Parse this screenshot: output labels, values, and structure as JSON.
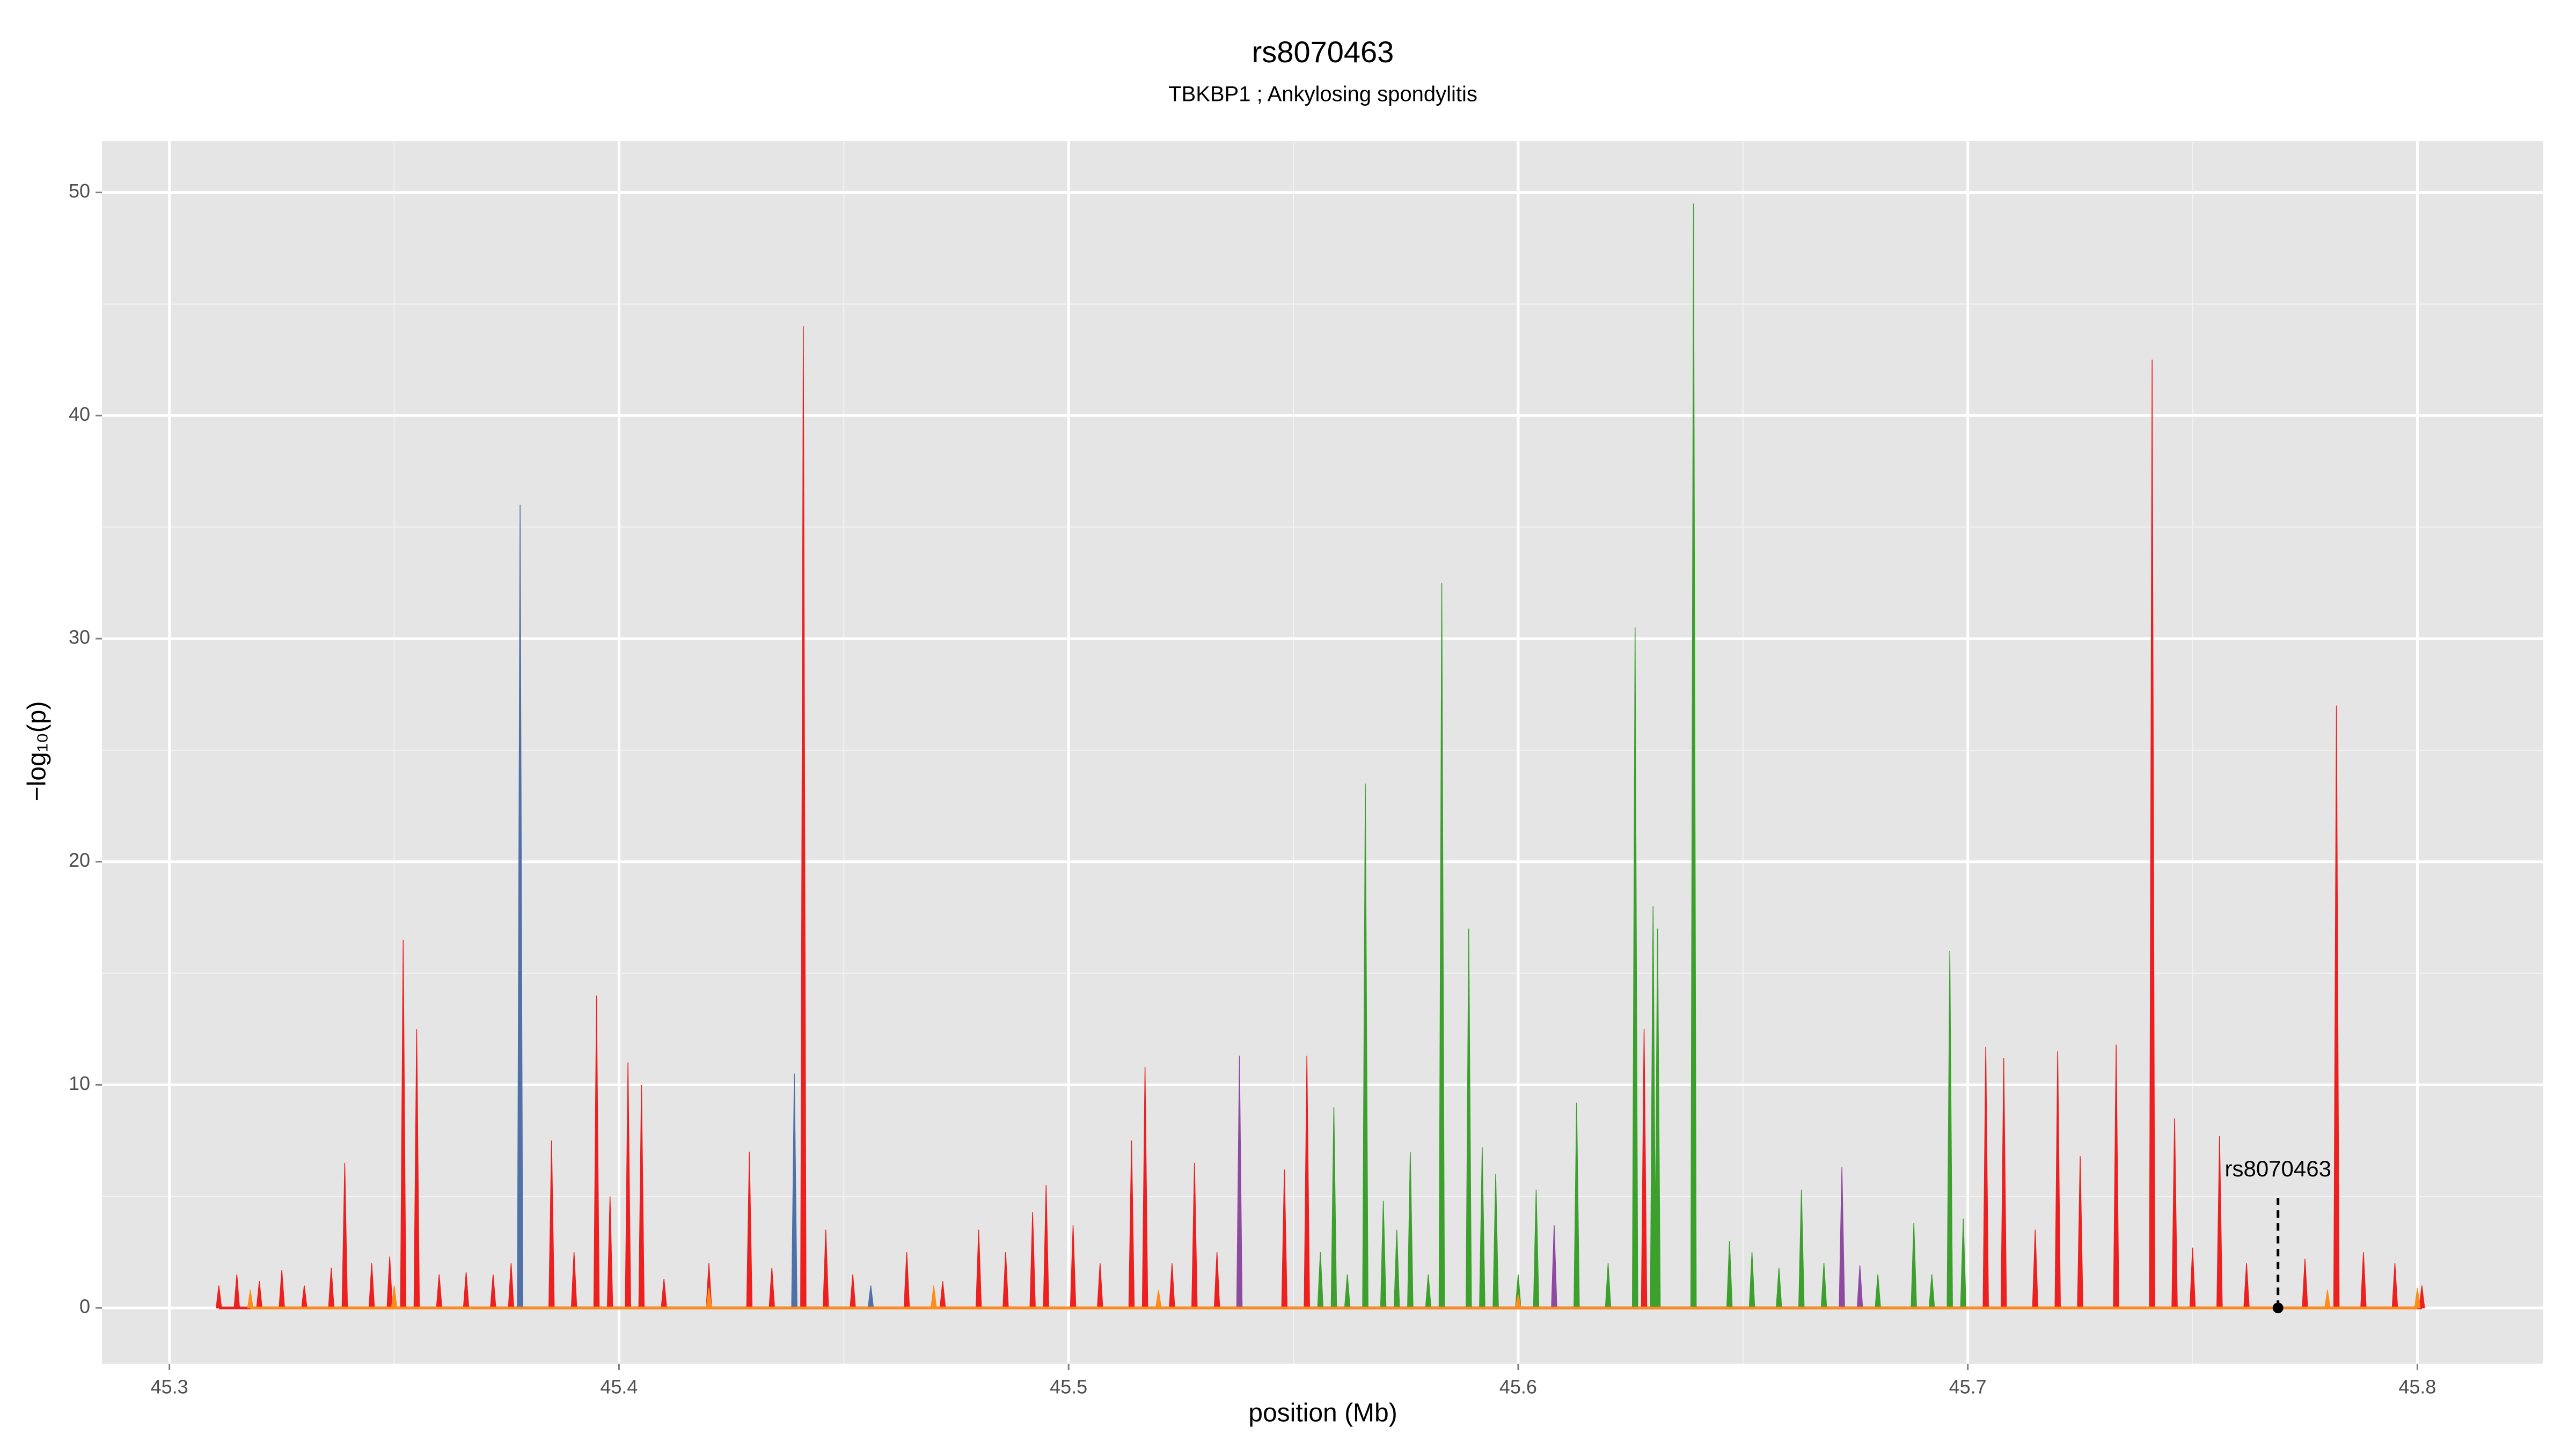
{
  "chart_data": {
    "type": "area",
    "title": "rs8070463",
    "subtitle": "TBKBP1 ; Ankylosing spondylitis",
    "x_label": "position (Mb)",
    "y_label": "−log₁₀(p)",
    "xlim": [
      45.285,
      45.828
    ],
    "ylim": [
      -2.5,
      52.3
    ],
    "xticks": [
      45.3,
      45.4,
      45.5,
      45.6,
      45.7,
      45.8
    ],
    "yticks": [
      0,
      10,
      20,
      30,
      40,
      50
    ],
    "grid": true,
    "series": [
      {
        "name": "red",
        "color": "#ee1f1f",
        "x": [
          45.311,
          45.315,
          45.32,
          45.325,
          45.33,
          45.336,
          45.339,
          45.345,
          45.349,
          45.352,
          45.355,
          45.36,
          45.366,
          45.372,
          45.376,
          45.385,
          45.39,
          45.395,
          45.398,
          45.402,
          45.405,
          45.41,
          45.42,
          45.429,
          45.434,
          45.441,
          45.446,
          45.452,
          45.464,
          45.472,
          45.48,
          45.486,
          45.492,
          45.495,
          45.501,
          45.507,
          45.514,
          45.517,
          45.523,
          45.528,
          45.533,
          45.548,
          45.553,
          45.628,
          45.704,
          45.708,
          45.715,
          45.72,
          45.725,
          45.733,
          45.741,
          45.746,
          45.75,
          45.756,
          45.762,
          45.775,
          45.782,
          45.788,
          45.795,
          45.801
        ],
        "values": [
          1,
          1.5,
          1.2,
          1.7,
          1,
          1.8,
          6.5,
          2,
          2.3,
          16.5,
          12.5,
          1.5,
          1.6,
          1.5,
          2,
          7.5,
          2.5,
          14,
          5,
          11,
          10,
          1.3,
          2,
          7,
          1.8,
          44,
          3.5,
          1.5,
          2.5,
          1.2,
          3.5,
          2.5,
          4.3,
          5.5,
          3.7,
          2,
          7.5,
          10.8,
          2,
          6.5,
          2.5,
          6.2,
          11.3,
          12.5,
          11.7,
          11.2,
          3.5,
          11.5,
          6.8,
          11.8,
          42.5,
          8.5,
          2.7,
          7.7,
          2,
          2.2,
          27,
          2.5,
          2,
          1
        ]
      },
      {
        "name": "green",
        "color": "#3ba02c",
        "x": [
          45.556,
          45.559,
          45.562,
          45.566,
          45.57,
          45.573,
          45.576,
          45.58,
          45.583,
          45.589,
          45.592,
          45.595,
          45.6,
          45.604,
          45.613,
          45.62,
          45.626,
          45.63,
          45.631,
          45.639,
          45.647,
          45.652,
          45.658,
          45.663,
          45.668,
          45.68,
          45.688,
          45.692,
          45.696,
          45.699
        ],
        "values": [
          2.5,
          9,
          1.5,
          23.5,
          4.8,
          3.5,
          7,
          1.5,
          32.5,
          17,
          7.2,
          6,
          1.5,
          5.3,
          9.2,
          2,
          30.5,
          18,
          17,
          49.5,
          3,
          2.5,
          1.8,
          5.3,
          2,
          1.5,
          3.8,
          1.5,
          16,
          4
        ]
      },
      {
        "name": "blue",
        "color": "#5070a8",
        "x": [
          45.378,
          45.439,
          45.456
        ],
        "values": [
          36,
          10.5,
          1
        ]
      },
      {
        "name": "purple",
        "color": "#8e4aa0",
        "x": [
          45.538,
          45.608,
          45.672,
          45.676
        ],
        "values": [
          11.3,
          3.7,
          6.3,
          1.9
        ]
      },
      {
        "name": "orange",
        "color": "#ff8c1a",
        "x": [
          45.318,
          45.35,
          45.42,
          45.47,
          45.52,
          45.6,
          45.78,
          45.8
        ],
        "values": [
          0.8,
          1,
          0.9,
          1,
          0.8,
          0.6,
          0.8,
          0.9
        ]
      }
    ],
    "annotation": {
      "label": "rs8070463",
      "x": 45.769,
      "y": 0
    }
  }
}
